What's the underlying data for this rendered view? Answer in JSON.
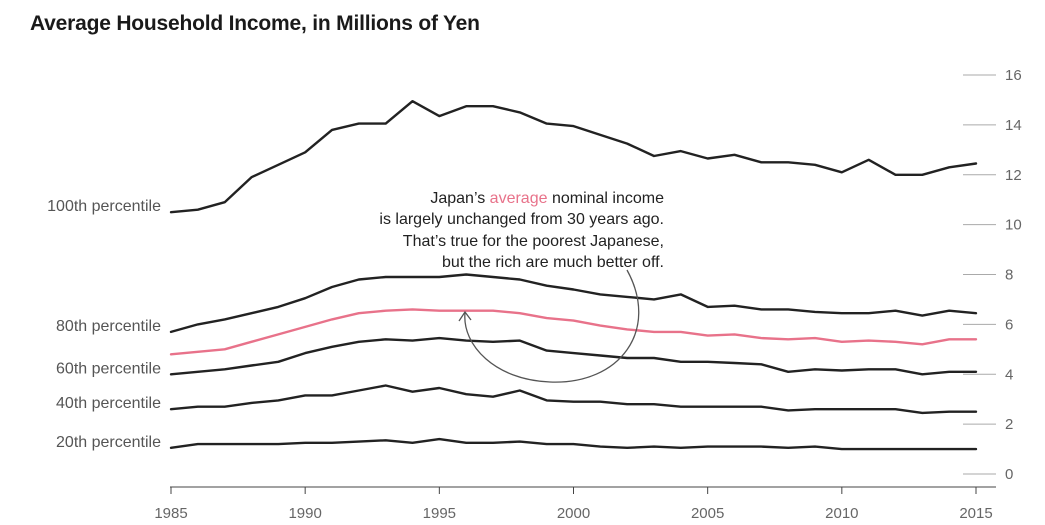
{
  "chart_data": {
    "type": "line",
    "title": "Average Household Income, in Millions of Yen",
    "xlabel": "",
    "ylabel": "",
    "xlim": [
      1985,
      2015
    ],
    "ylim": [
      0,
      16
    ],
    "x_ticks": [
      "1985",
      "1990",
      "1995",
      "2000",
      "2005",
      "2010",
      "2015"
    ],
    "y_ticks": [
      "0",
      "2",
      "4",
      "6",
      "8",
      "10",
      "12",
      "14",
      "16"
    ],
    "grid": false,
    "legend": "inline labels at left",
    "x": [
      1985,
      1986,
      1987,
      1988,
      1989,
      1990,
      1991,
      1992,
      1993,
      1994,
      1995,
      1996,
      1997,
      1998,
      1999,
      2000,
      2001,
      2002,
      2003,
      2004,
      2005,
      2006,
      2007,
      2008,
      2009,
      2010,
      2011,
      2012,
      2013,
      2014,
      2015
    ],
    "series": [
      {
        "name": "100th percentile",
        "color": "#222222",
        "values": [
          10.5,
          10.6,
          10.9,
          11.9,
          12.4,
          12.9,
          13.8,
          14.05,
          14.05,
          14.95,
          14.35,
          14.75,
          14.75,
          14.5,
          14.05,
          13.95,
          13.6,
          13.25,
          12.75,
          12.95,
          12.65,
          12.8,
          12.5,
          12.5,
          12.4,
          12.1,
          12.6,
          12.0,
          12.0,
          12.3,
          12.45
        ]
      },
      {
        "name": "80th percentile",
        "color": "#222222",
        "values": [
          5.7,
          6.0,
          6.2,
          6.45,
          6.7,
          7.05,
          7.5,
          7.8,
          7.9,
          7.9,
          7.9,
          8.0,
          7.9,
          7.8,
          7.55,
          7.4,
          7.2,
          7.1,
          7.0,
          7.2,
          6.7,
          6.75,
          6.6,
          6.6,
          6.5,
          6.45,
          6.45,
          6.55,
          6.35,
          6.55,
          6.45
        ]
      },
      {
        "name": "average",
        "color": "#e8728a",
        "values": [
          4.8,
          4.9,
          5.0,
          5.3,
          5.6,
          5.9,
          6.2,
          6.45,
          6.55,
          6.6,
          6.55,
          6.55,
          6.55,
          6.45,
          6.25,
          6.15,
          5.95,
          5.8,
          5.7,
          5.7,
          5.55,
          5.6,
          5.45,
          5.4,
          5.45,
          5.3,
          5.35,
          5.3,
          5.2,
          5.4,
          5.4
        ]
      },
      {
        "name": "60th percentile",
        "color": "#222222",
        "values": [
          4.0,
          4.1,
          4.2,
          4.35,
          4.5,
          4.85,
          5.1,
          5.3,
          5.4,
          5.35,
          5.45,
          5.35,
          5.3,
          5.35,
          4.95,
          4.85,
          4.75,
          4.65,
          4.65,
          4.5,
          4.5,
          4.45,
          4.4,
          4.1,
          4.2,
          4.15,
          4.2,
          4.2,
          4.0,
          4.1,
          4.1
        ]
      },
      {
        "name": "40th percentile",
        "color": "#222222",
        "values": [
          2.6,
          2.7,
          2.7,
          2.85,
          2.95,
          3.15,
          3.15,
          3.35,
          3.55,
          3.3,
          3.45,
          3.2,
          3.1,
          3.35,
          2.95,
          2.9,
          2.9,
          2.8,
          2.8,
          2.7,
          2.7,
          2.7,
          2.7,
          2.55,
          2.6,
          2.6,
          2.6,
          2.6,
          2.45,
          2.5,
          2.5
        ]
      },
      {
        "name": "20th percentile",
        "color": "#222222",
        "values": [
          1.05,
          1.2,
          1.2,
          1.2,
          1.2,
          1.25,
          1.25,
          1.3,
          1.35,
          1.25,
          1.4,
          1.25,
          1.25,
          1.3,
          1.2,
          1.2,
          1.1,
          1.05,
          1.1,
          1.05,
          1.1,
          1.1,
          1.1,
          1.05,
          1.1,
          1.0,
          1.0,
          1.0,
          1.0,
          1.0,
          1.0
        ]
      }
    ],
    "annotation": {
      "line1_pre": "Japan’s ",
      "line1_highlight": "average",
      "line1_post": " nominal income",
      "line2": "is largely unchanged from 30 years ago.",
      "line3": "That’s true for the poorest Japanese,",
      "line4": "but the rich are much better off.",
      "highlight_color": "#e8728a"
    }
  }
}
